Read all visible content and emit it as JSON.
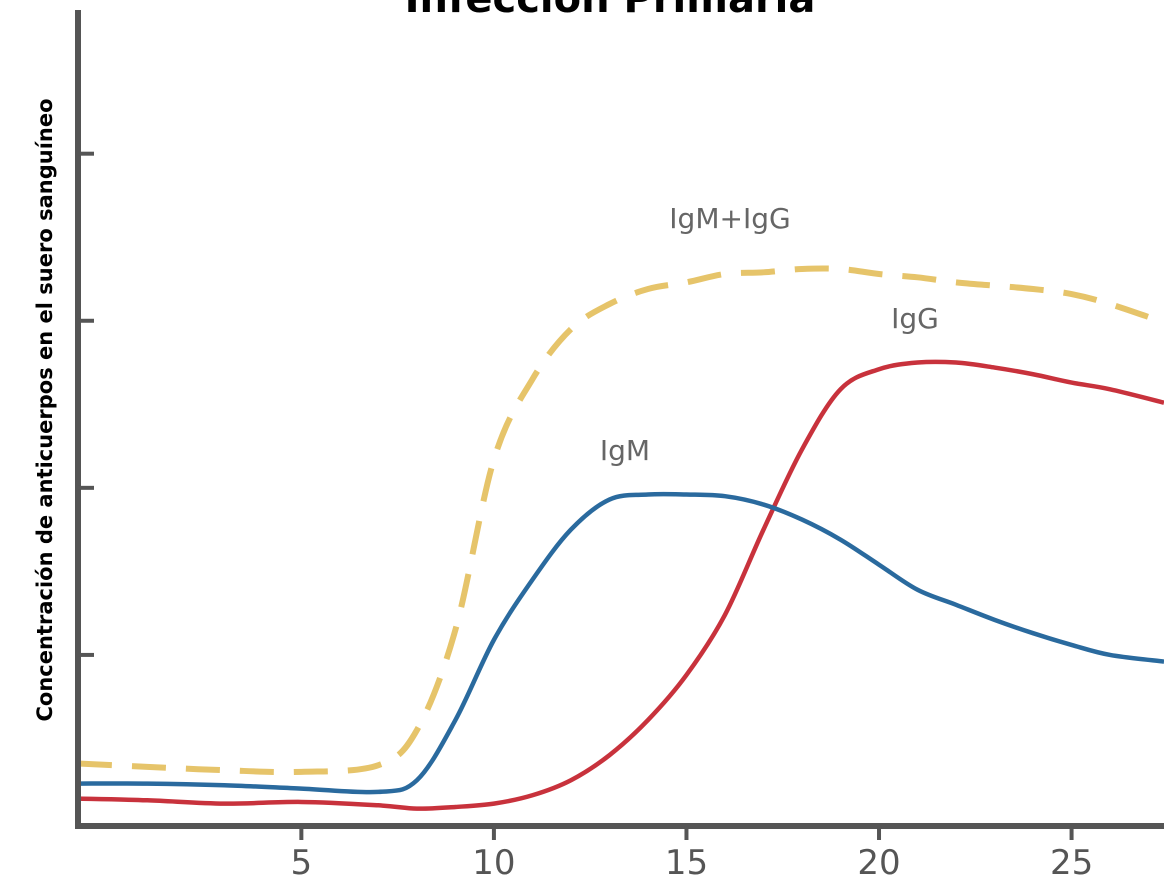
{
  "chart_data": {
    "type": "line",
    "title": "Infección Primaria",
    "ylabel": "Concentración de anticuerpos en el suero sanguíneo",
    "x": [
      -0.8,
      1,
      3,
      5,
      7,
      8,
      9,
      10,
      11,
      12,
      13,
      14,
      15,
      16,
      17,
      18,
      19,
      20,
      21,
      22,
      23,
      24,
      25,
      26,
      27.4
    ],
    "series": [
      {
        "name": "IgM+IgG",
        "color": "#e6c46a",
        "dashed": true,
        "values": [
          0.35,
          0.33,
          0.31,
          0.3,
          0.34,
          0.55,
          1.15,
          2.17,
          2.65,
          2.95,
          3.1,
          3.19,
          3.23,
          3.28,
          3.29,
          3.31,
          3.31,
          3.28,
          3.26,
          3.23,
          3.21,
          3.19,
          3.16,
          3.1,
          2.99
        ]
      },
      {
        "name": "IgG",
        "color": "#c8323c",
        "values": [
          0.14,
          0.13,
          0.11,
          0.12,
          0.1,
          0.08,
          0.09,
          0.11,
          0.16,
          0.25,
          0.4,
          0.61,
          0.88,
          1.24,
          1.75,
          2.23,
          2.59,
          2.71,
          2.75,
          2.75,
          2.72,
          2.68,
          2.63,
          2.59,
          2.51
        ]
      },
      {
        "name": "IgM",
        "color": "#2a6a9e",
        "values": [
          0.23,
          0.23,
          0.22,
          0.2,
          0.18,
          0.25,
          0.61,
          1.09,
          1.45,
          1.75,
          1.93,
          1.96,
          1.96,
          1.95,
          1.9,
          1.81,
          1.69,
          1.54,
          1.39,
          1.3,
          1.21,
          1.13,
          1.06,
          1.0,
          0.96
        ]
      }
    ],
    "xlim": [
      -0.8,
      27.4
    ],
    "xticks": [
      5,
      10,
      15,
      20,
      25
    ],
    "ylim": [
      0,
      4.86
    ],
    "yticks": [
      1,
      2,
      3,
      4
    ],
    "grid": false
  }
}
